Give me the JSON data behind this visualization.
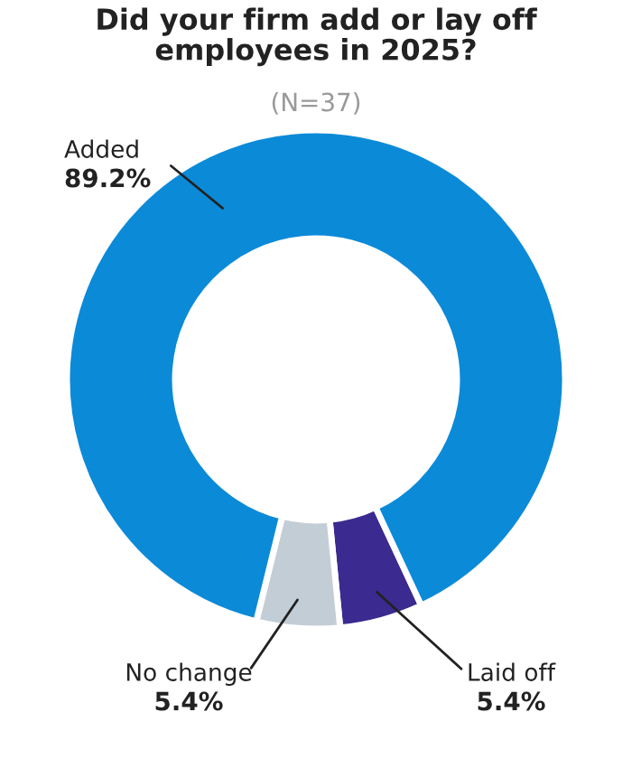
{
  "chart_data": {
    "type": "donut",
    "title": "Did your firm add or lay off\nemployees in 2025?",
    "subtitle": "(N=37)",
    "categories": [
      "Laid off",
      "No change",
      "Added"
    ],
    "values": [
      5.4,
      5.4,
      89.2
    ],
    "colors": [
      "#3b2a8f",
      "#c3cdd6",
      "#0b8ad8"
    ],
    "value_labels": [
      "5.4%",
      "5.4%",
      "89.2%"
    ],
    "legend": false
  }
}
